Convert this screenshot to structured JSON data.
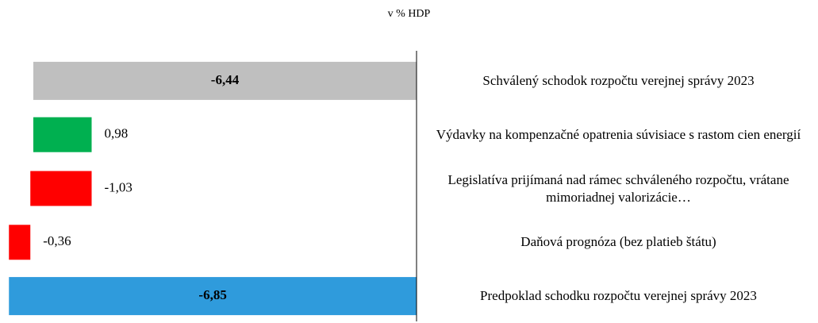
{
  "chart_data": {
    "type": "waterfall",
    "orientation": "horizontal",
    "title": "v % HDP",
    "categories": [
      "Schválený schodok rozpočtu verejnej správy 2023",
      "Výdavky na kompenzačné opatrenia súvisiace s rastom cien energií",
      "Legislatíva prijímaná nad rámec schváleného rozpočtu, vrátane mimoriadnej valorizácie…",
      "Daňová prognóza (bez platieb štátu)",
      "Predpoklad schodku rozpočtu verejnej správy 2023"
    ],
    "values": [
      -6.44,
      0.98,
      -1.03,
      -0.36,
      -6.85
    ],
    "value_labels": [
      "-6,44",
      "0,98",
      "-1,03",
      "-0,36",
      "-6,85"
    ],
    "measures": [
      "total",
      "relative",
      "relative",
      "relative",
      "total"
    ],
    "colors": [
      "#bfbfbf",
      "#00b050",
      "#ff0000",
      "#ff0000",
      "#2f9bdc"
    ],
    "xlim": [
      -7,
      0
    ]
  }
}
